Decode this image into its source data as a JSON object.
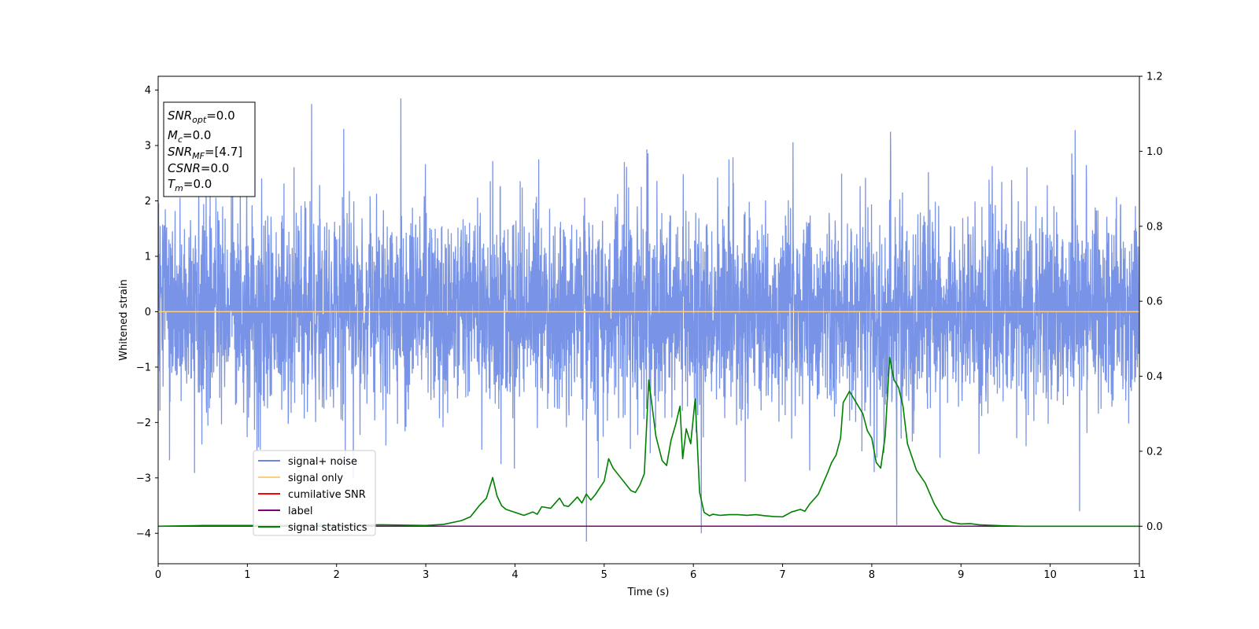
{
  "chart_data": {
    "type": "line",
    "xlabel": "Time (s)",
    "ylabel": "Whitened strain",
    "xlim": [
      0,
      11
    ],
    "ylim": [
      -4.55,
      4.25
    ],
    "y2lim": [
      -0.1,
      1.2
    ],
    "xticks": [
      "0",
      "1",
      "2",
      "3",
      "4",
      "5",
      "6",
      "7",
      "8",
      "9",
      "10",
      "11"
    ],
    "yticks": [
      "−4",
      "−3",
      "−2",
      "−1",
      "0",
      "1",
      "2",
      "3",
      "4"
    ],
    "y2ticks": [
      "0.0",
      "0.2",
      "0.4",
      "0.6",
      "0.8",
      "1.0",
      "1.2"
    ],
    "legend_position": "lower-left",
    "grid": false,
    "series": [
      {
        "name": "signal+ noise",
        "color": "#6a88e3",
        "axis": "left",
        "kind": "noise",
        "amplitude_typical": 1.2,
        "range": [
          -4.15,
          3.85
        ],
        "peaks": [
          {
            "x": 1.72,
            "y": 3.75
          },
          {
            "x": 2.72,
            "y": 3.85
          },
          {
            "x": 8.21,
            "y": 3.25
          },
          {
            "x": 10.28,
            "y": 3.28
          },
          {
            "x": 2.08,
            "y": 3.3
          },
          {
            "x": 4.8,
            "y": -4.15
          },
          {
            "x": 6.09,
            "y": -4.0
          },
          {
            "x": 8.28,
            "y": -3.85
          },
          {
            "x": 10.33,
            "y": -3.6
          }
        ]
      },
      {
        "name": "signal only",
        "color": "#ffcc80",
        "axis": "left",
        "kind": "constant",
        "value": 0
      },
      {
        "name": "cumilative SNR",
        "color": "#ff0000",
        "axis": "right",
        "kind": "constant",
        "value": 0
      },
      {
        "name": "label",
        "color": "#800080",
        "axis": "right",
        "kind": "constant",
        "value": 0
      },
      {
        "name": "signal statistics",
        "color": "#008000",
        "axis": "right",
        "kind": "line",
        "x": [
          0,
          0.5,
          1.0,
          1.5,
          2.0,
          2.5,
          3.0,
          3.2,
          3.4,
          3.5,
          3.6,
          3.68,
          3.75,
          3.8,
          3.85,
          3.9,
          4.0,
          4.1,
          4.2,
          4.25,
          4.3,
          4.4,
          4.5,
          4.55,
          4.6,
          4.7,
          4.75,
          4.8,
          4.85,
          4.9,
          5.0,
          5.05,
          5.1,
          5.2,
          5.3,
          5.35,
          5.4,
          5.45,
          5.5,
          5.58,
          5.65,
          5.7,
          5.75,
          5.8,
          5.85,
          5.88,
          5.92,
          5.97,
          6.02,
          6.07,
          6.12,
          6.18,
          6.22,
          6.3,
          6.4,
          6.5,
          6.6,
          6.7,
          6.8,
          6.9,
          7.0,
          7.1,
          7.2,
          7.25,
          7.3,
          7.4,
          7.5,
          7.55,
          7.6,
          7.65,
          7.68,
          7.75,
          7.8,
          7.85,
          7.9,
          7.95,
          8.0,
          8.05,
          8.1,
          8.15,
          8.2,
          8.25,
          8.3,
          8.35,
          8.4,
          8.5,
          8.6,
          8.7,
          8.8,
          8.9,
          9.0,
          9.1,
          9.2,
          9.3,
          9.5,
          9.7,
          10.0,
          10.5,
          11.0
        ],
        "values": [
          0.0,
          0.002,
          0.002,
          0.002,
          0.002,
          0.004,
          0.002,
          0.005,
          0.015,
          0.025,
          0.055,
          0.075,
          0.13,
          0.08,
          0.055,
          0.045,
          0.037,
          0.029,
          0.038,
          0.032,
          0.052,
          0.048,
          0.075,
          0.055,
          0.053,
          0.078,
          0.062,
          0.086,
          0.07,
          0.084,
          0.12,
          0.18,
          0.155,
          0.125,
          0.095,
          0.09,
          0.11,
          0.14,
          0.39,
          0.24,
          0.175,
          0.162,
          0.23,
          0.27,
          0.32,
          0.18,
          0.26,
          0.22,
          0.34,
          0.09,
          0.037,
          0.028,
          0.032,
          0.029,
          0.031,
          0.031,
          0.029,
          0.031,
          0.028,
          0.026,
          0.025,
          0.038,
          0.045,
          0.04,
          0.058,
          0.085,
          0.14,
          0.17,
          0.19,
          0.235,
          0.33,
          0.36,
          0.34,
          0.32,
          0.3,
          0.255,
          0.235,
          0.17,
          0.155,
          0.24,
          0.45,
          0.39,
          0.37,
          0.32,
          0.22,
          0.15,
          0.115,
          0.06,
          0.02,
          0.01,
          0.006,
          0.007,
          0.004,
          0.003,
          0.001,
          0.0,
          0.0,
          0.0,
          0.0
        ]
      }
    ]
  },
  "info_box": {
    "snr_opt": {
      "main": "SNR",
      "sub": "opt",
      "value": "=0.0"
    },
    "mc": {
      "main": "M",
      "sub": "c",
      "value": "=0.0"
    },
    "snr_mf": {
      "main": "SNR",
      "sub": "MF",
      "value": "=[4.7]"
    },
    "csnr": {
      "main": "CSNR",
      "value": "=0.0"
    },
    "tm": {
      "main": "T",
      "sub": "m",
      "value": "=0.0"
    }
  }
}
